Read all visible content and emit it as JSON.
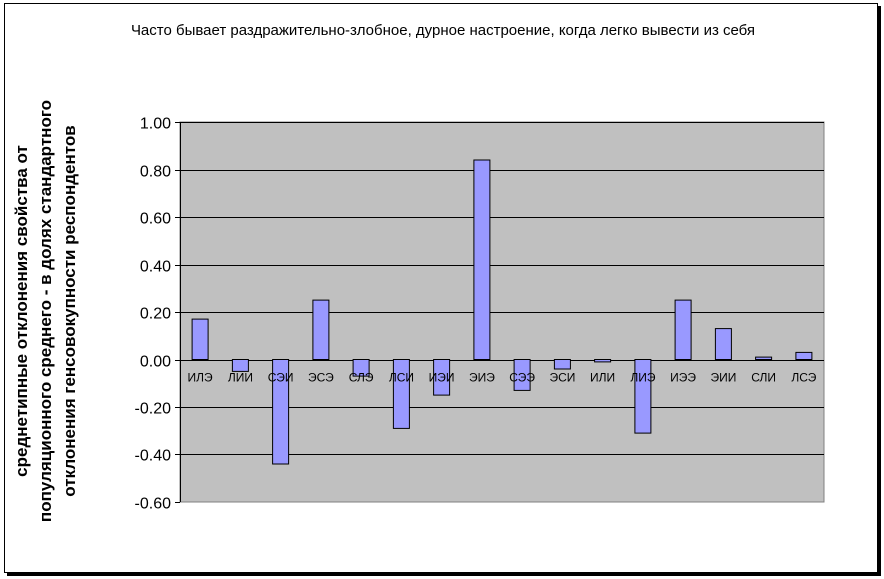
{
  "chart_data": {
    "type": "bar",
    "title": "Часто бывает раздражительно-злобное, дурное настроение, когда легко вывести из себя",
    "ylabel": "среднетипные отклонения свойства от популяционного среднего - в долях стандартного отклонения генсовокупности респондентов",
    "xlabel": "",
    "categories": [
      "ИЛЭ",
      "ЛИИ",
      "СЭИ",
      "ЭСЭ",
      "СЛЭ",
      "ЛСИ",
      "ИЭИ",
      "ЭИЭ",
      "СЭЭ",
      "ЭСИ",
      "ИЛИ",
      "ЛИЭ",
      "ИЭЭ",
      "ЭИИ",
      "СЛИ",
      "ЛСЭ"
    ],
    "values": [
      0.17,
      -0.05,
      -0.44,
      0.25,
      -0.07,
      -0.29,
      -0.15,
      0.84,
      -0.13,
      -0.04,
      -0.01,
      -0.31,
      0.25,
      0.13,
      0.01,
      0.03
    ],
    "ylim": [
      -0.6,
      1.0
    ],
    "yticks": [
      "1.00",
      "0.80",
      "0.60",
      "0.40",
      "0.20",
      "0.00",
      "-0.20",
      "-0.40",
      "-0.60"
    ],
    "grid": true,
    "colors": {
      "plot_background": "#c0c0c0",
      "bar_fill": "#9999ff",
      "bar_stroke": "#000000",
      "gridline": "#000000"
    }
  }
}
